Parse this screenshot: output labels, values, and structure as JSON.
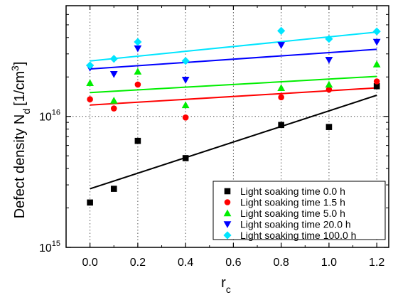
{
  "chart_data": {
    "type": "scatter",
    "title": "",
    "xlabel": "r",
    "xlabel_sub": "c",
    "ylabel_main": "Defect density N",
    "ylabel_sub": "d",
    "ylabel_unit": "[1/cm",
    "ylabel_unit_sup": "3",
    "ylabel_close": "]",
    "xlim": [
      -0.1,
      1.25
    ],
    "ylim": [
      1000000000000000.0,
      7e+16
    ],
    "yscale": "log",
    "xticks": [
      "0.0",
      "0.2",
      "0.4",
      "0.6",
      "0.8",
      "1.0",
      "1.2"
    ],
    "xtick_values": [
      0.0,
      0.2,
      0.4,
      0.6,
      0.8,
      1.0,
      1.2
    ],
    "yticks": [
      {
        "value": 1000000000000000.0,
        "base": "10",
        "exp": "15"
      },
      {
        "value": 1e+16,
        "base": "10",
        "exp": "16"
      }
    ],
    "grid": "dotted",
    "legend_position": "bottom-right",
    "series": [
      {
        "name": "Light soaking time 0.0 h",
        "marker": "square",
        "color": "#000000",
        "x": [
          0.0,
          0.1,
          0.2,
          0.4,
          0.8,
          1.0,
          1.2
        ],
        "y": [
          2200000000000000.0,
          2800000000000000.0,
          6500000000000000.0,
          4800000000000000.0,
          8600000000000000.0,
          8300000000000000.0,
          1.7e+16
        ],
        "fit": [
          2800000000000000.0,
          1.45e+16
        ]
      },
      {
        "name": "Light soaking time 1.5 h",
        "marker": "circle",
        "color": "#ff0000",
        "x": [
          0.0,
          0.1,
          0.2,
          0.4,
          0.8,
          1.0,
          1.2
        ],
        "y": [
          1.35e+16,
          1.15e+16,
          1.75e+16,
          9800000000000000.0,
          1.4e+16,
          1.6e+16,
          1.85e+16
        ],
        "fit": [
          1.22e+16,
          1.65e+16
        ]
      },
      {
        "name": "Light soaking time 5.0 h",
        "marker": "triangle-up",
        "color": "#00ee00",
        "x": [
          0.0,
          0.1,
          0.2,
          0.4,
          0.8,
          1.0,
          1.2
        ],
        "y": [
          1.8e+16,
          1.32e+16,
          2.2e+16,
          1.22e+16,
          1.65e+16,
          1.75e+16,
          2.5e+16
        ],
        "fit": [
          1.52e+16,
          2.02e+16
        ]
      },
      {
        "name": "Light soaking time 20.0 h",
        "marker": "triangle-down",
        "color": "#0000ff",
        "x": [
          0.0,
          0.1,
          0.2,
          0.4,
          0.8,
          1.0,
          1.2
        ],
        "y": [
          2.35e+16,
          2.1e+16,
          3.3e+16,
          1.9e+16,
          3.5e+16,
          2.7e+16,
          3.7e+16
        ],
        "fit": [
          2.3e+16,
          3.25e+16
        ]
      },
      {
        "name": "Light soaking time 100.0 h",
        "marker": "diamond",
        "color": "#00e5ff",
        "x": [
          0.0,
          0.1,
          0.2,
          0.4,
          0.8,
          1.0,
          1.2
        ],
        "y": [
          2.45e+16,
          2.75e+16,
          3.7e+16,
          2.65e+16,
          4.5e+16,
          3.9e+16,
          4.45e+16
        ],
        "fit": [
          2.65e+16,
          4.4e+16
        ]
      }
    ]
  }
}
